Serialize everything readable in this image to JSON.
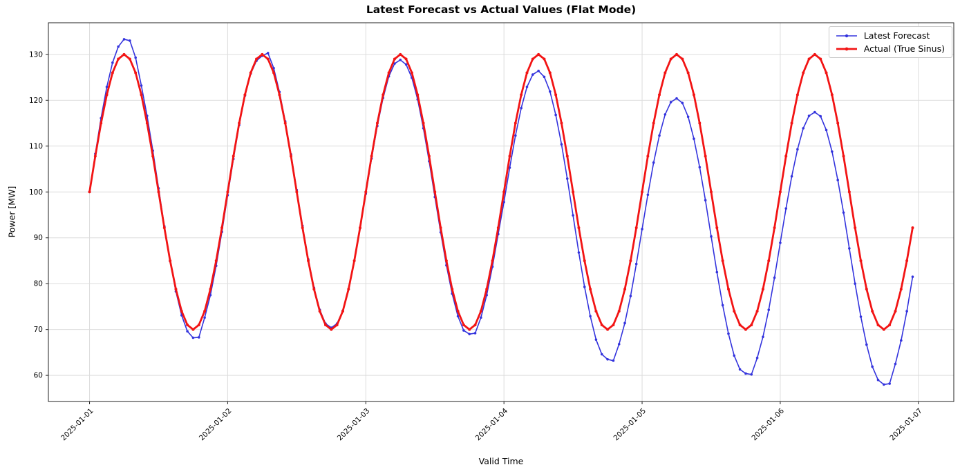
{
  "chart_data": {
    "type": "line",
    "title": "Latest Forecast vs Actual Values (Flat Mode)",
    "xlabel": "Valid Time",
    "ylabel": "Power [MW]",
    "grid": true,
    "legend_position": "upper right",
    "x_unit": "hours from first tick, hourly resolution",
    "x_tick_labels": [
      "2025-01-01",
      "2025-01-02",
      "2025-01-03",
      "2025-01-04",
      "2025-01-05",
      "2025-01-06",
      "2025-01-07"
    ],
    "x_tick_hours": [
      0,
      24,
      48,
      72,
      96,
      120,
      144
    ],
    "y_ticks": [
      60,
      70,
      80,
      90,
      100,
      110,
      120,
      130
    ],
    "xlim": [
      -7.15,
      150.15
    ],
    "ylim": [
      54.3,
      136.9
    ],
    "series": [
      {
        "name": "Latest Forecast",
        "color": "#3333dd",
        "linewidth": 1.6,
        "marker": "circle",
        "marker_size": 1.8,
        "values": [
          100.0,
          108.3,
          116.1,
          122.9,
          128.2,
          131.7,
          133.3,
          133.0,
          129.3,
          123.2,
          116.6,
          109.0,
          100.8,
          92.5,
          84.9,
          78.3,
          73.1,
          69.6,
          68.2,
          68.3,
          72.6,
          77.5,
          83.9,
          91.3,
          99.3,
          107.2,
          114.6,
          121.0,
          125.8,
          128.6,
          129.7,
          130.3,
          127.0,
          121.8,
          115.4,
          108.2,
          100.4,
          92.6,
          85.3,
          79.1,
          74.3,
          71.3,
          70.4,
          71.3,
          74.1,
          78.8,
          85.0,
          92.1,
          99.6,
          107.3,
          114.4,
          120.5,
          125.2,
          128.0,
          128.8,
          127.8,
          124.9,
          120.2,
          113.9,
          106.7,
          98.9,
          91.2,
          84.0,
          77.8,
          72.9,
          69.8,
          69.0,
          69.2,
          72.6,
          77.5,
          83.7,
          90.8,
          97.8,
          105.3,
          112.3,
          118.3,
          122.9,
          125.6,
          126.4,
          125.1,
          121.9,
          116.8,
          110.4,
          102.9,
          94.9,
          86.8,
          79.3,
          72.9,
          67.8,
          64.6,
          63.5,
          63.2,
          66.8,
          71.4,
          77.3,
          84.3,
          91.9,
          99.4,
          106.4,
          112.3,
          116.9,
          119.6,
          120.4,
          119.4,
          116.4,
          111.6,
          105.4,
          98.2,
          90.3,
          82.5,
          75.3,
          69.1,
          64.3,
          61.3,
          60.4,
          60.2,
          63.8,
          68.4,
          74.3,
          81.3,
          88.9,
          96.4,
          103.4,
          109.3,
          113.9,
          116.6,
          117.4,
          116.5,
          113.5,
          108.8,
          102.6,
          95.5,
          87.7,
          80.0,
          72.8,
          66.7,
          61.9,
          59.0,
          58.0,
          58.2,
          62.5,
          67.6,
          74.0,
          81.5
        ]
      },
      {
        "name": "Actual (True Sinus)",
        "color": "#f21414",
        "linewidth": 2.8,
        "marker": "circle",
        "marker_size": 2.0,
        "values": [
          100.0,
          107.8,
          115.0,
          121.2,
          126.0,
          129.0,
          130.0,
          129.0,
          126.0,
          121.2,
          115.0,
          107.8,
          100.0,
          92.2,
          85.0,
          78.8,
          74.0,
          71.0,
          70.0,
          71.0,
          74.0,
          78.8,
          85.0,
          92.2,
          100.0,
          107.8,
          115.0,
          121.2,
          126.0,
          129.0,
          130.0,
          129.0,
          126.0,
          121.2,
          115.0,
          107.8,
          100.0,
          92.2,
          85.0,
          78.8,
          74.0,
          71.0,
          70.0,
          71.0,
          74.0,
          78.8,
          85.0,
          92.2,
          100.0,
          107.8,
          115.0,
          121.2,
          126.0,
          129.0,
          130.0,
          129.0,
          126.0,
          121.2,
          115.0,
          107.8,
          100.0,
          92.2,
          85.0,
          78.8,
          74.0,
          71.0,
          70.0,
          71.0,
          74.0,
          78.8,
          85.0,
          92.2,
          100.0,
          107.8,
          115.0,
          121.2,
          126.0,
          129.0,
          130.0,
          129.0,
          126.0,
          121.2,
          115.0,
          107.8,
          100.0,
          92.2,
          85.0,
          78.8,
          74.0,
          71.0,
          70.0,
          71.0,
          74.0,
          78.8,
          85.0,
          92.2,
          100.0,
          107.8,
          115.0,
          121.2,
          126.0,
          129.0,
          130.0,
          129.0,
          126.0,
          121.2,
          115.0,
          107.8,
          100.0,
          92.2,
          85.0,
          78.8,
          74.0,
          71.0,
          70.0,
          71.0,
          74.0,
          78.8,
          85.0,
          92.2,
          100.0,
          107.8,
          115.0,
          121.2,
          126.0,
          129.0,
          130.0,
          129.0,
          126.0,
          121.2,
          115.0,
          107.8,
          100.0,
          92.2,
          85.0,
          78.8,
          74.0,
          71.0,
          70.0,
          71.0,
          74.0,
          78.8,
          85.0,
          92.2
        ]
      }
    ]
  }
}
